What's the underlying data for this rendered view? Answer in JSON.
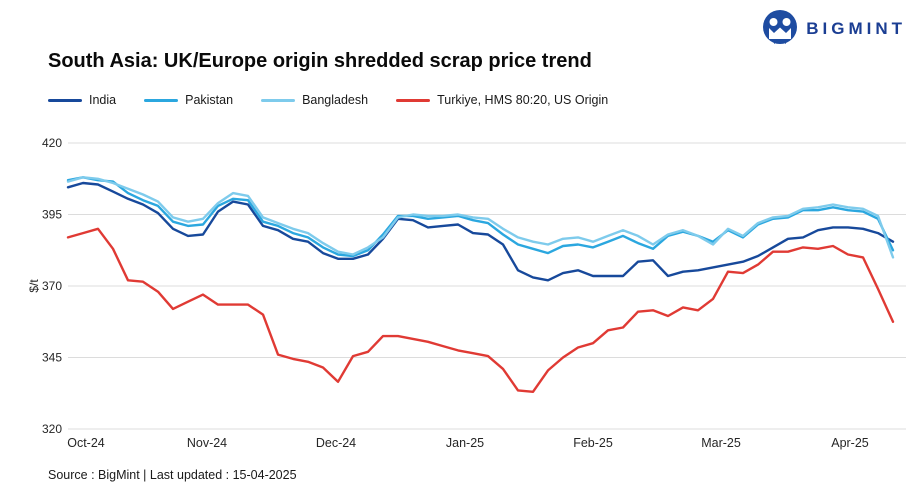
{
  "logo": {
    "brand": "BIGMINT"
  },
  "header": {
    "title": "South Asia: UK/Europe origin shredded scrap price trend"
  },
  "footer": {
    "text": "Source : BigMint | Last updated : 15-04-2025"
  },
  "chart_data": {
    "type": "line",
    "title": "South Asia: UK/Europe origin shredded scrap price trend",
    "xlabel": "",
    "ylabel": "$/t",
    "ylim": [
      320,
      420
    ],
    "y_ticks": [
      420,
      395,
      370,
      345,
      320
    ],
    "x_tick_labels": [
      "Oct-24",
      "Nov-24",
      "Dec-24",
      "Jan-25",
      "Feb-25",
      "Mar-25",
      "Apr-25"
    ],
    "grid": "horizontal",
    "gridline_color": "#DCDCDC",
    "axis_text_color": "#262626",
    "legend_position": "top-left",
    "series": [
      {
        "name": "India",
        "color": "#17499B",
        "values": [
          404.5,
          406,
          405.5,
          403,
          400.5,
          398.5,
          395.5,
          390,
          387.5,
          388,
          396,
          399.5,
          398.5,
          391,
          389.5,
          386.5,
          385.5,
          381.5,
          379.5,
          379.5,
          381,
          386.5,
          393.5,
          393,
          390.5,
          391,
          391.5,
          388.5,
          388,
          384.5,
          375.5,
          373,
          372,
          374.5,
          375.5,
          373.5,
          373.5,
          373.5,
          378.5,
          379,
          373.5,
          375,
          375.5,
          376.5,
          377.5,
          378.5,
          380.5,
          383.5,
          386.5,
          387,
          389.5,
          390.5,
          390.5,
          390,
          388.5,
          385.5
        ]
      },
      {
        "name": "Pakistan",
        "color": "#2BA7DF",
        "values": [
          407,
          408,
          407,
          406.5,
          402.5,
          400,
          398,
          392.5,
          391,
          391.5,
          398,
          400.5,
          400,
          392.5,
          391,
          388.5,
          387,
          383.5,
          381,
          380.5,
          382.5,
          388,
          394.5,
          394.5,
          393.5,
          394,
          394.5,
          393,
          392,
          388,
          384.5,
          383,
          381.5,
          384,
          384.5,
          383.5,
          385.5,
          387.5,
          385,
          383,
          387.5,
          389,
          387.5,
          385.5,
          389.5,
          387,
          391.5,
          393.5,
          394,
          396.5,
          396.5,
          397.5,
          396.5,
          396,
          393.5,
          382.5
        ]
      },
      {
        "name": "Bangladesh",
        "color": "#7ECBEC",
        "values": [
          406.5,
          408,
          407.5,
          406,
          404,
          402,
          399.5,
          394,
          392.5,
          393.5,
          399,
          402.5,
          401.5,
          394,
          392,
          390,
          388.5,
          385,
          382,
          381,
          383.5,
          387,
          394,
          395,
          394.5,
          394.5,
          395,
          394,
          393.5,
          390,
          387,
          385.5,
          384.5,
          386.5,
          387,
          385.5,
          387.5,
          389.5,
          387.5,
          384.5,
          388,
          389.5,
          387.5,
          384.5,
          390,
          387.5,
          392,
          394,
          394.5,
          397,
          397.5,
          398.5,
          397.5,
          397,
          394.5,
          380
        ]
      },
      {
        "name": "Turkiye, HMS 80:20, US Origin",
        "color": "#E03A34",
        "values": [
          387,
          388.5,
          390,
          383,
          372,
          371.5,
          368,
          362,
          364.5,
          367,
          363.5,
          363.5,
          363.5,
          360,
          346,
          344.5,
          343.5,
          341.5,
          336.5,
          345.5,
          347,
          352.5,
          352.5,
          351.5,
          350.5,
          349,
          347.5,
          346.5,
          345.5,
          341,
          333.5,
          333,
          340.5,
          345,
          348.5,
          350,
          354.5,
          355.5,
          361,
          361.5,
          359.5,
          362.5,
          361.5,
          365.5,
          375,
          374.5,
          377.5,
          382,
          382,
          383.5,
          383,
          384,
          381,
          380,
          369,
          357.5
        ]
      }
    ]
  }
}
